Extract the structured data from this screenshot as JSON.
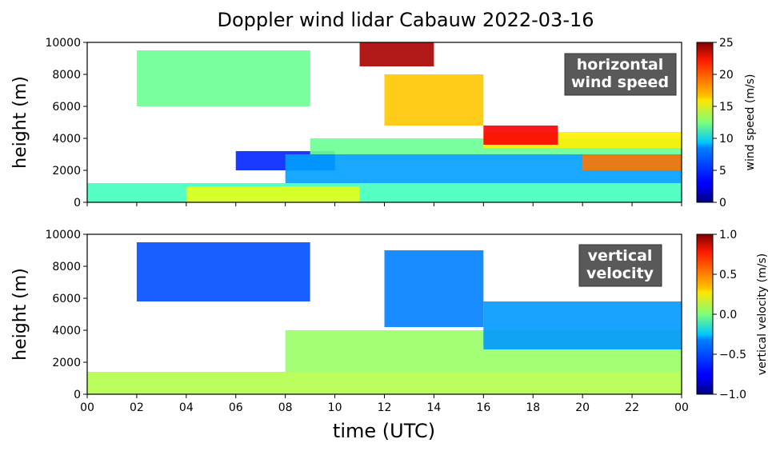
{
  "figure": {
    "title": "Doppler wind lidar Cabauw 2022-03-16",
    "xlabel": "time (UTC)"
  },
  "chart_data": [
    {
      "type": "heatmap",
      "title": "",
      "annotation_lines": [
        "horizontal",
        "wind speed"
      ],
      "xlabel": "",
      "ylabel": "height (m)",
      "xlim": [
        0,
        24
      ],
      "ylim": [
        0,
        10000
      ],
      "y_ticks": [
        "0",
        "2000",
        "4000",
        "6000",
        "8000",
        "10000"
      ],
      "colorbar": {
        "label": "wind speed (m/s)",
        "range": [
          0,
          25
        ],
        "ticks": [
          "0",
          "5",
          "10",
          "15",
          "20",
          "25"
        ],
        "colormap": "jet"
      },
      "regions": [
        {
          "t": [
            0,
            24
          ],
          "h": [
            0,
            1200
          ],
          "value": 11
        },
        {
          "t": [
            4,
            11
          ],
          "h": [
            0,
            1000
          ],
          "value": 15
        },
        {
          "t": [
            6,
            10
          ],
          "h": [
            2000,
            3200
          ],
          "value": 4
        },
        {
          "t": [
            8,
            24
          ],
          "h": [
            1200,
            3000
          ],
          "value": 7
        },
        {
          "t": [
            9,
            24
          ],
          "h": [
            3000,
            4000
          ],
          "value": 12
        },
        {
          "t": [
            16,
            24
          ],
          "h": [
            3400,
            4400
          ],
          "value": 16
        },
        {
          "t": [
            20,
            24
          ],
          "h": [
            2000,
            3000
          ],
          "value": 19
        },
        {
          "t": [
            2,
            9
          ],
          "h": [
            6000,
            9500
          ],
          "value": 12
        },
        {
          "t": [
            11,
            14
          ],
          "h": [
            8500,
            10000
          ],
          "value": 24
        },
        {
          "t": [
            12,
            16
          ],
          "h": [
            4800,
            8000
          ],
          "value": 17
        },
        {
          "t": [
            16,
            19
          ],
          "h": [
            3600,
            4800
          ],
          "value": 22
        }
      ]
    },
    {
      "type": "heatmap",
      "title": "",
      "annotation_lines": [
        "vertical",
        "velocity"
      ],
      "xlabel": "time (UTC)",
      "ylabel": "height (m)",
      "xlim": [
        0,
        24
      ],
      "ylim": [
        0,
        10000
      ],
      "x_ticks": [
        "00",
        "02",
        "04",
        "06",
        "08",
        "10",
        "12",
        "14",
        "16",
        "18",
        "20",
        "22",
        "00"
      ],
      "y_ticks": [
        "0",
        "2000",
        "4000",
        "6000",
        "8000",
        "10000"
      ],
      "colorbar": {
        "label": "vertical velocity (m/s)",
        "range": [
          -1.0,
          1.0
        ],
        "ticks": [
          "−1.0",
          "−0.5",
          "0.0",
          "0.5",
          "1.0"
        ],
        "colormap": "jet"
      },
      "regions": [
        {
          "t": [
            0,
            24
          ],
          "h": [
            0,
            1400
          ],
          "value": 0.1
        },
        {
          "t": [
            8,
            24
          ],
          "h": [
            1400,
            4000
          ],
          "value": 0.05
        },
        {
          "t": [
            2,
            9
          ],
          "h": [
            5800,
            9500
          ],
          "value": -0.6
        },
        {
          "t": [
            12,
            16
          ],
          "h": [
            4200,
            9000
          ],
          "value": -0.5
        },
        {
          "t": [
            16,
            24
          ],
          "h": [
            2800,
            5800
          ],
          "value": -0.45
        }
      ]
    }
  ]
}
